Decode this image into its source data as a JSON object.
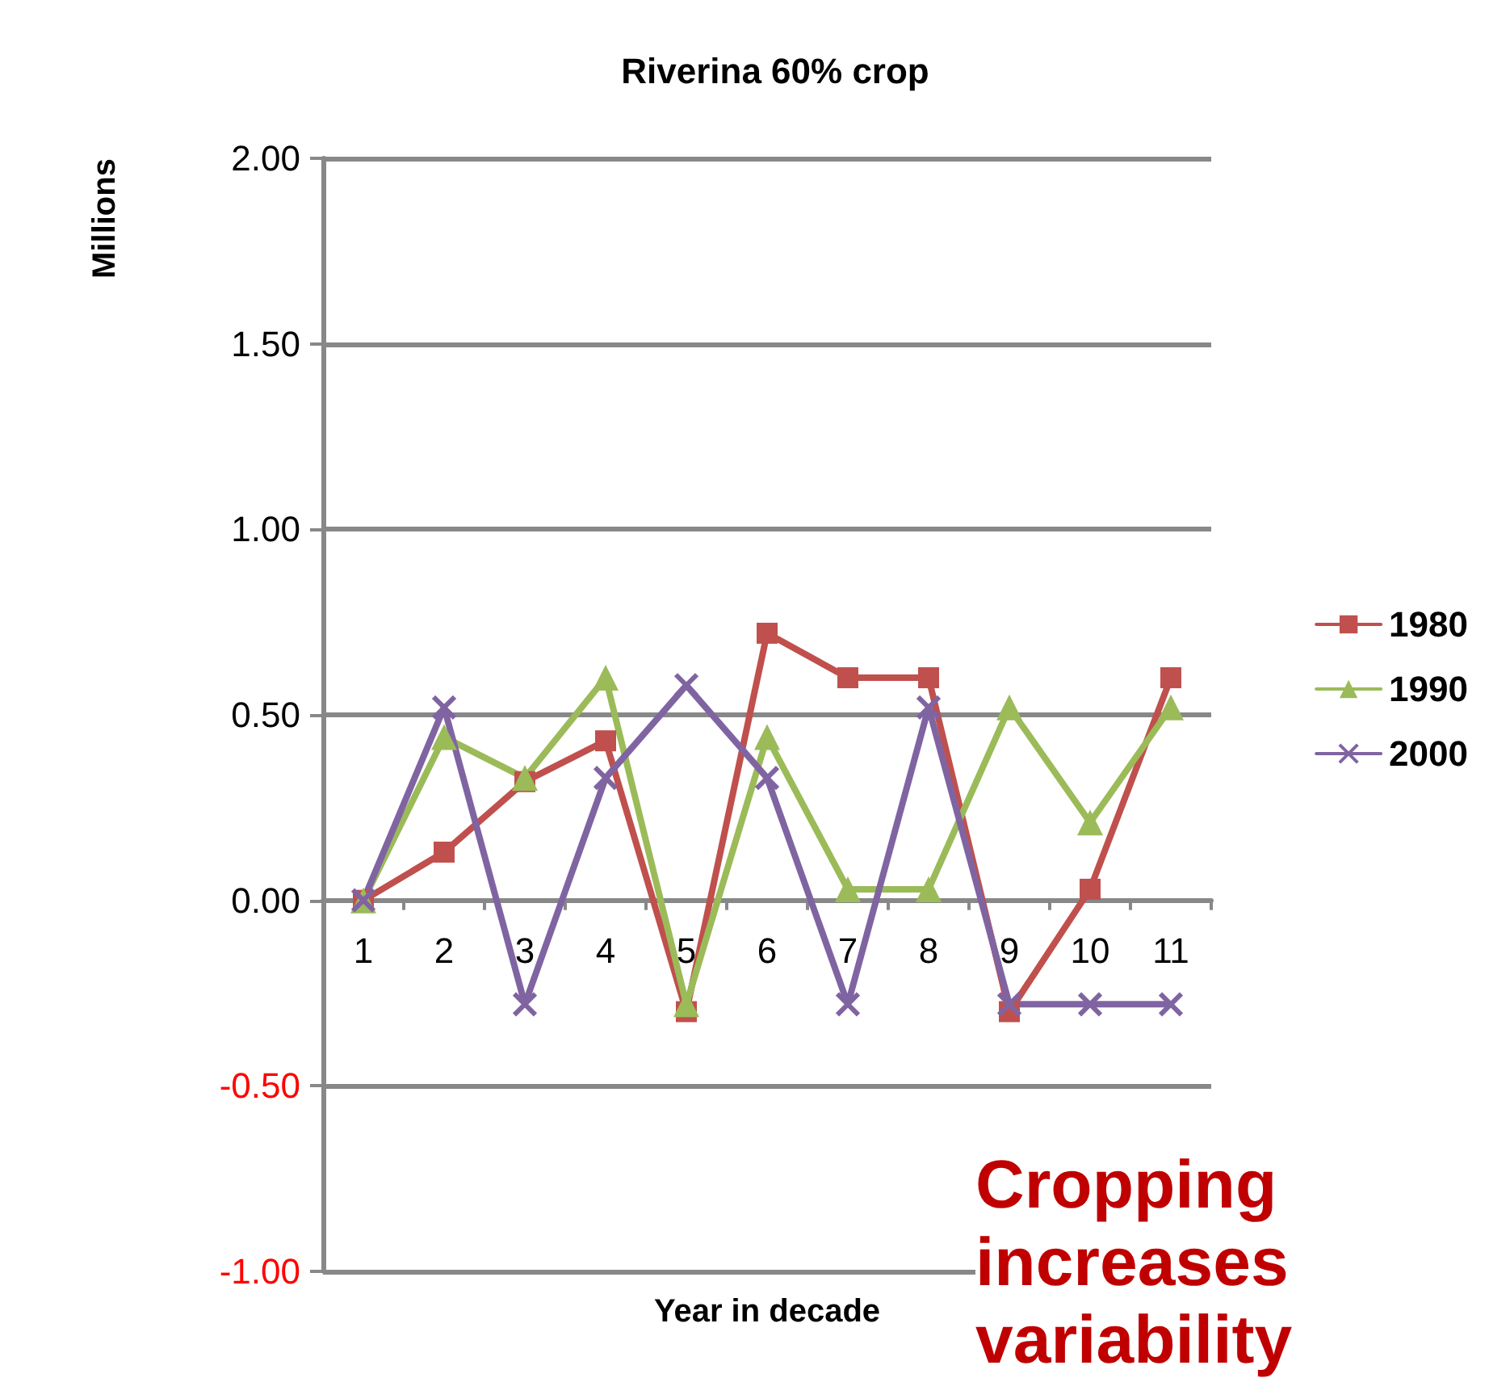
{
  "chart_data": {
    "type": "line",
    "title": "Riverina 60% crop",
    "xlabel": "Year in decade",
    "ylabel": "Millions",
    "categories": [
      "1",
      "2",
      "3",
      "4",
      "5",
      "6",
      "7",
      "8",
      "9",
      "10",
      "11"
    ],
    "series": [
      {
        "name": "1980",
        "color": "#c0504d",
        "marker": "square",
        "values": [
          0,
          0.13,
          0.32,
          0.43,
          -0.3,
          0.72,
          0.6,
          0.6,
          -0.3,
          0.03,
          0.6
        ]
      },
      {
        "name": "1990",
        "color": "#9bbb59",
        "marker": "triangle",
        "values": [
          0,
          0.44,
          0.33,
          0.6,
          -0.28,
          0.44,
          0.03,
          0.03,
          0.52,
          0.21,
          0.52
        ]
      },
      {
        "name": "2000",
        "color": "#8064a2",
        "marker": "cross",
        "values": [
          0,
          0.52,
          -0.28,
          0.33,
          0.58,
          0.33,
          -0.28,
          0.52,
          -0.28,
          -0.28,
          -0.28
        ]
      }
    ],
    "ylim": [
      -1,
      2
    ],
    "yticks": [
      {
        "value": -1,
        "label": "-1.00"
      },
      {
        "value": -0.5,
        "label": "-0.50"
      },
      {
        "value": 0,
        "label": "0.00"
      },
      {
        "value": 0.5,
        "label": "0.50"
      },
      {
        "value": 1,
        "label": "1.00"
      },
      {
        "value": 1.5,
        "label": "1.50"
      },
      {
        "value": 2,
        "label": "2.00"
      }
    ],
    "grid": "y",
    "legend": "right",
    "line_style": "solid",
    "annotations": [
      "Cropping increases variability"
    ]
  }
}
